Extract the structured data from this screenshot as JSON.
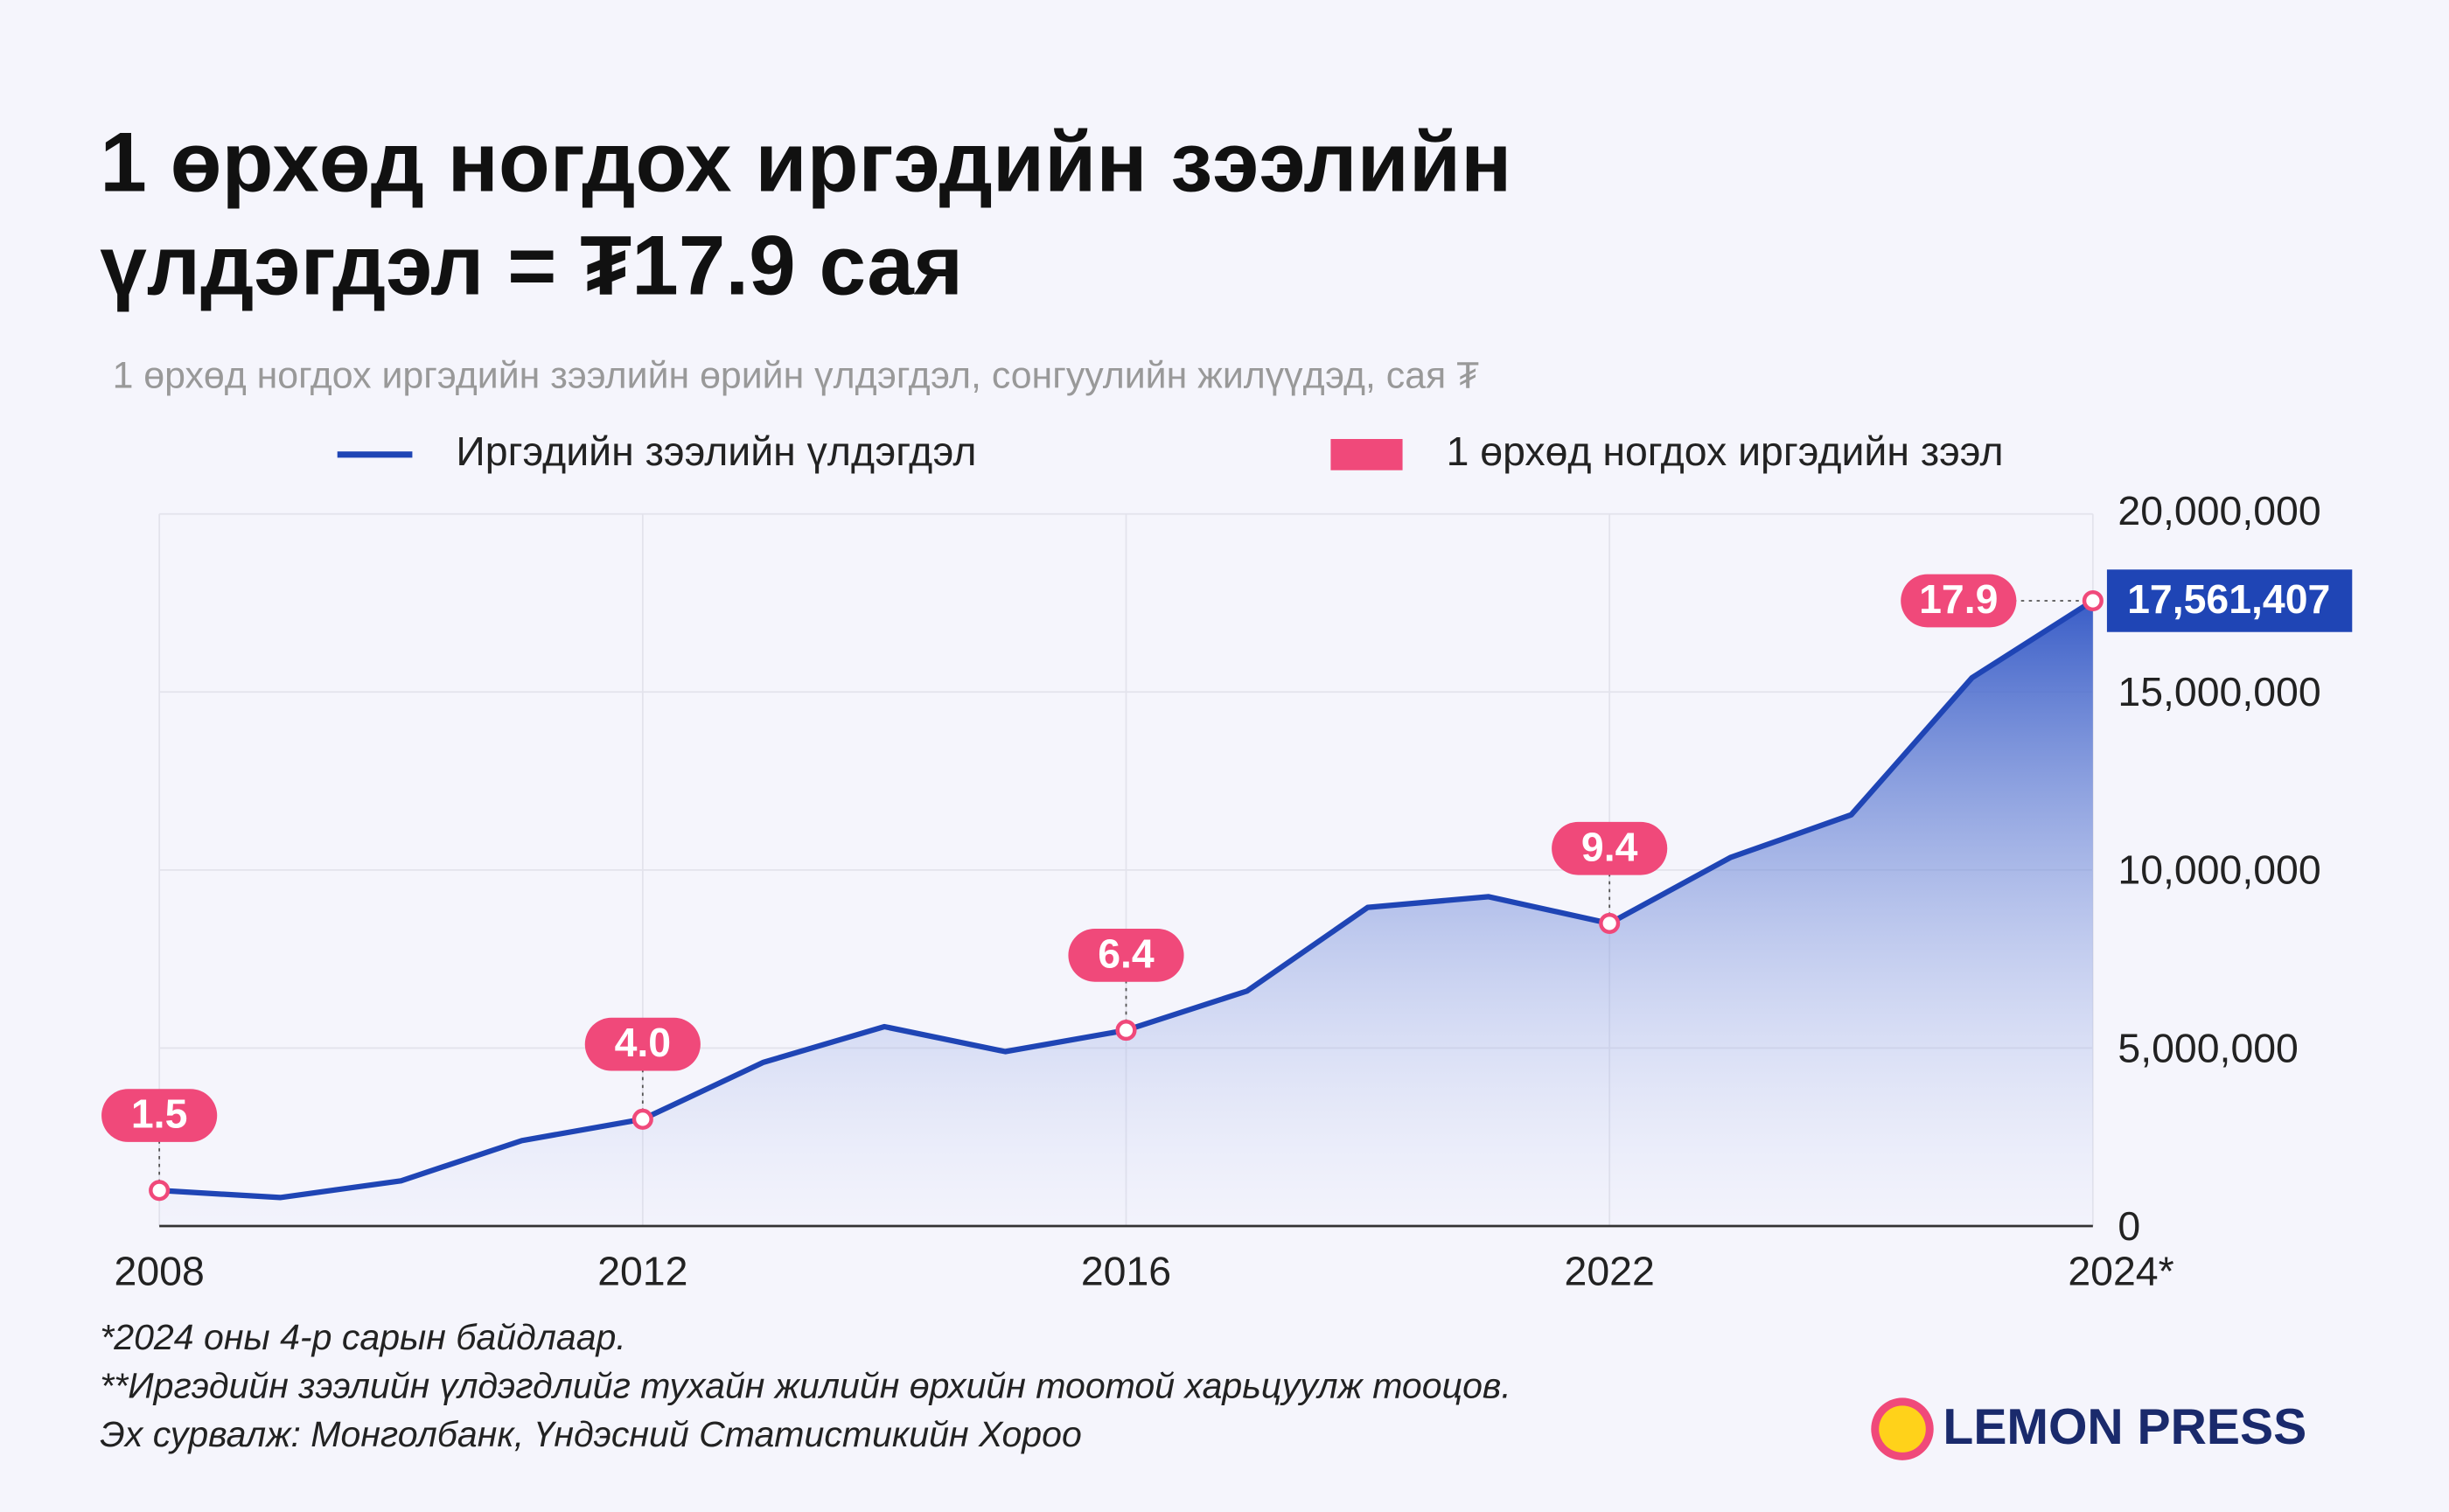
{
  "chart_data": {
    "type": "area",
    "title": [
      "1 өрхөд ногдох иргэдийн зээлийн",
      "үлдэгдэл = ₮17.9 сая"
    ],
    "subtitle": "1 өрхөд ногдох иргэдийн зээлийн өрийн үлдэгдэл, сонгуулийн жилүүдэд, сая ₮",
    "categories": [
      "2008",
      null,
      null,
      null,
      "2012",
      null,
      null,
      null,
      "2016",
      null,
      null,
      null,
      "2022",
      null,
      null,
      null,
      "2024*"
    ],
    "series": [
      {
        "name": "Иргэдийн зээлийн үлдэгдэл",
        "color": "#1f45b5",
        "values": [
          1000000,
          800000,
          1270000,
          2400000,
          3000000,
          4600000,
          5600000,
          4900000,
          5500000,
          6600000,
          8950000,
          9250000,
          8500000,
          10350000,
          11550000,
          15400000,
          17561407
        ],
        "value_labels": [
          null,
          null,
          null,
          null,
          null,
          null,
          null,
          null,
          null,
          null,
          null,
          null,
          null,
          null,
          null,
          null,
          "17,561,407"
        ]
      },
      {
        "name": "1 өрхөд ногдох иргэдийн зээл",
        "color": "#f0497a",
        "values": [
          1.5,
          null,
          null,
          null,
          4.0,
          null,
          null,
          null,
          6.4,
          null,
          null,
          null,
          9.4,
          null,
          null,
          null,
          17.9
        ],
        "value_labels": [
          "1.5",
          null,
          null,
          null,
          "4.0",
          null,
          null,
          null,
          "6.4",
          null,
          null,
          null,
          "9.4",
          null,
          null,
          null,
          "17.9"
        ]
      }
    ],
    "ylim": [
      0,
      20000000
    ],
    "yticks": [
      0,
      {
        "value": 5000000,
        "label": "5,000,000"
      },
      {
        "value": 10000000,
        "label": "10,000,000"
      },
      {
        "value": 15000000,
        "label": "15,000,000"
      },
      {
        "value": 20000000,
        "label": "20,000,000"
      }
    ],
    "grid": true,
    "notes": [
      "*2024 оны 4-р сарын байдлаар.",
      "**Иргэдийн зээлийн үлдэгдлийг тухайн жилийн өрхийн тоотой харьцуулж тооцов.",
      "Эх сурвалж: Монголбанк, Үндэсний Статистикийн Хороо"
    ],
    "brand": "LEMON PRESS"
  }
}
